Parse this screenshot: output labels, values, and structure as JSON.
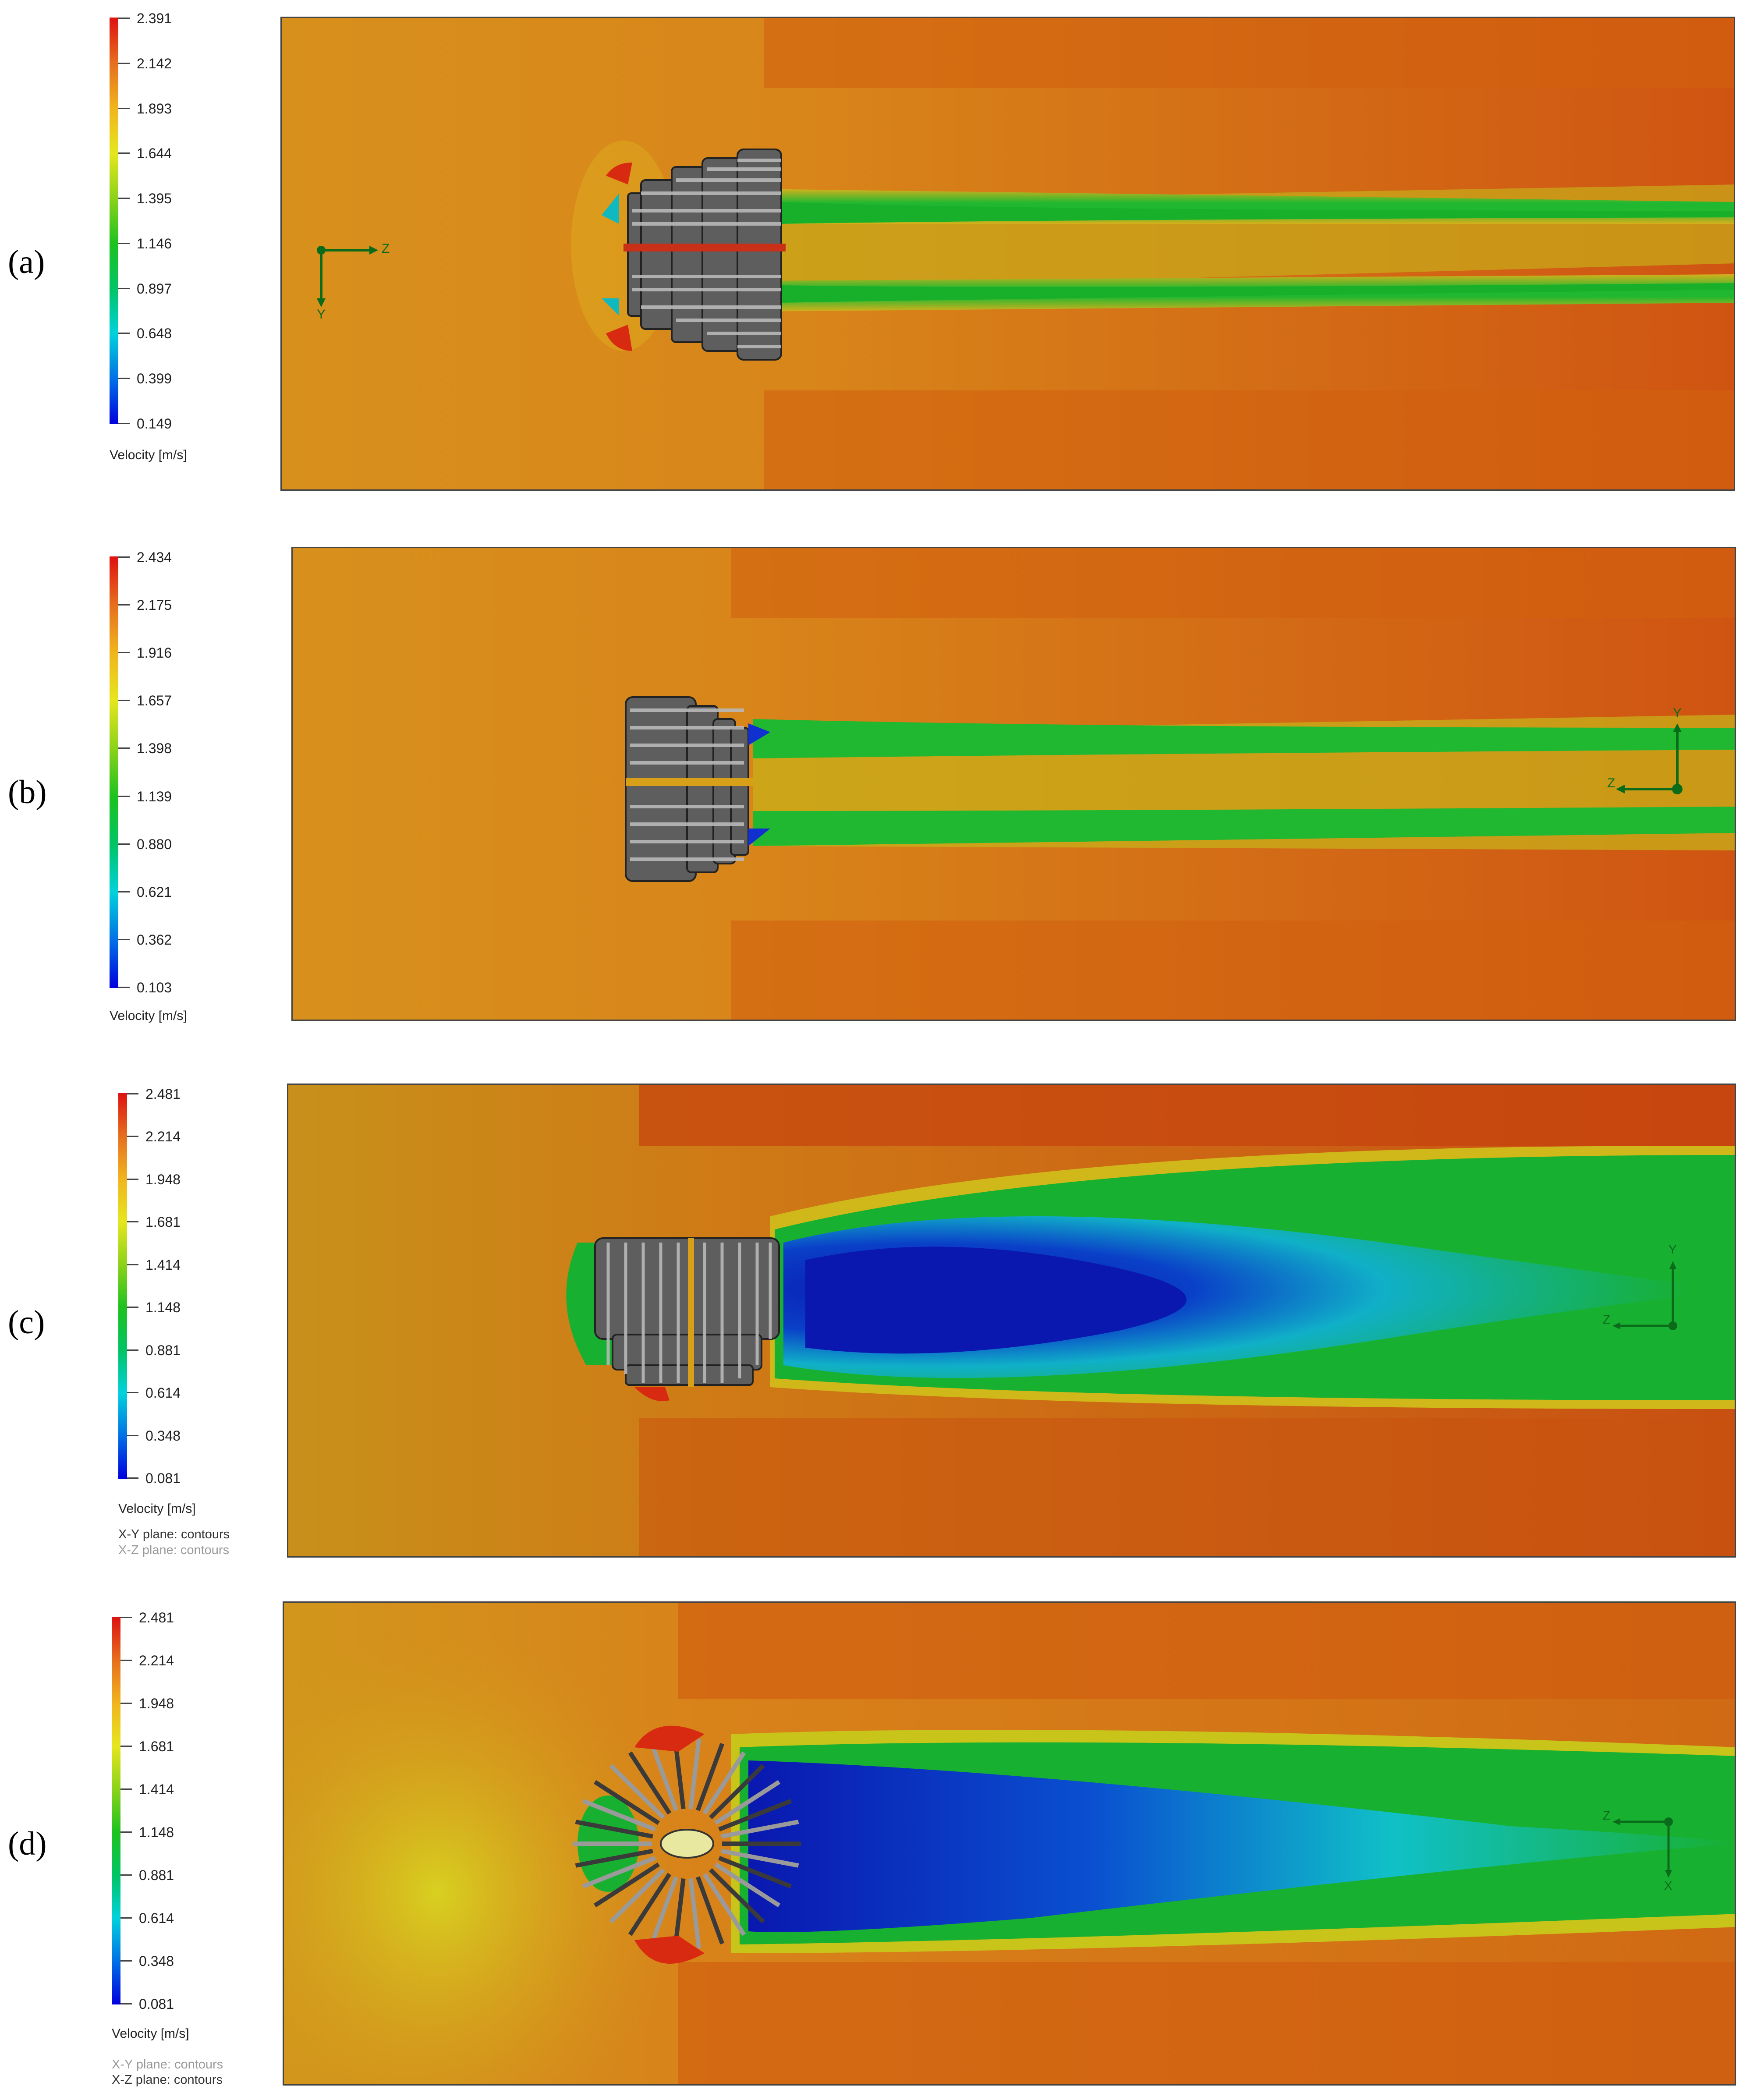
{
  "colorbar_colors": [
    "#0000dd",
    "#0070e6",
    "#00d2dc",
    "#00c464",
    "#1ec21e",
    "#8cd21a",
    "#e6e61e",
    "#f0b41e",
    "#e66e1e",
    "#dd1111"
  ],
  "flow_colors": {
    "inlet": "#d28c1c",
    "fast": "#cc4a10",
    "edge": "#d66a14",
    "wake_blue": "#0a22c0",
    "wake_cyan": "#10b8c8",
    "wake_green": "#18b228",
    "yellow_green": "#a8c41a",
    "turbine_grey": "#6e6e6e",
    "axis_green": "#0a6b1a"
  },
  "panels": [
    {
      "label": "(a)",
      "legend": {
        "ticks": [
          "2.391",
          "2.142",
          "1.893",
          "1.644",
          "1.395",
          "1.146",
          "0.897",
          "0.648",
          "0.399",
          "0.149"
        ],
        "unit": "Velocity [m/s]",
        "notes": []
      },
      "axes": {
        "h": "Z",
        "v": "Y"
      }
    },
    {
      "label": "(b)",
      "legend": {
        "ticks": [
          "2.434",
          "2.175",
          "1.916",
          "1.657",
          "1.398",
          "1.139",
          "0.880",
          "0.621",
          "0.362",
          "0.103"
        ],
        "unit": "Velocity [m/s]",
        "notes": []
      },
      "axes": {
        "h": "Z",
        "v": "Y"
      }
    },
    {
      "label": "(c)",
      "legend": {
        "ticks": [
          "2.481",
          "2.214",
          "1.948",
          "1.681",
          "1.414",
          "1.148",
          "0.881",
          "0.614",
          "0.348",
          "0.081"
        ],
        "unit": "Velocity [m/s]",
        "notes": [
          "X-Y plane: contours",
          "X-Z plane: contours"
        ]
      },
      "axes": {
        "h": "Z",
        "v": "Y"
      }
    },
    {
      "label": "(d)",
      "legend": {
        "ticks": [
          "2.481",
          "2.214",
          "1.948",
          "1.681",
          "1.414",
          "1.148",
          "0.881",
          "0.614",
          "0.348",
          "0.081"
        ],
        "unit": "Velocity [m/s]",
        "notes": [
          "X-Y plane: contours",
          "X-Z plane: contours"
        ]
      },
      "axes": {
        "h": "Z",
        "v": "X"
      }
    }
  ]
}
